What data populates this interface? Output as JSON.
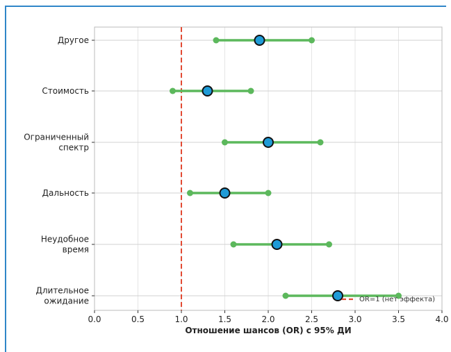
{
  "chart_data": {
    "type": "forest",
    "xlabel": "Отношение шансов (OR) с 95% ДИ",
    "xlim": [
      0.0,
      4.0
    ],
    "xticks": [
      "0.0",
      "0.5",
      "1.0",
      "1.5",
      "2.0",
      "2.5",
      "3.0",
      "3.5",
      "4.0"
    ],
    "grid": true,
    "reference_line": {
      "x": 1.0,
      "label": "OR=1 (нет эффекта)",
      "color": "#e24a33",
      "style": "dashed"
    },
    "legend_position": "bottom-right",
    "categories": [
      {
        "lines": [
          "Другое"
        ],
        "or": 1.9,
        "lo": 1.4,
        "hi": 2.5
      },
      {
        "lines": [
          "Стоимость"
        ],
        "or": 1.3,
        "lo": 0.9,
        "hi": 1.8
      },
      {
        "lines": [
          "Ограниченный",
          "спектр"
        ],
        "or": 2.0,
        "lo": 1.5,
        "hi": 2.6
      },
      {
        "lines": [
          "Дальность"
        ],
        "or": 1.5,
        "lo": 1.1,
        "hi": 2.0
      },
      {
        "lines": [
          "Неудобное",
          "время"
        ],
        "or": 2.1,
        "lo": 1.6,
        "hi": 2.7
      },
      {
        "lines": [
          "Длительное",
          "ожидание"
        ],
        "or": 2.8,
        "lo": 2.2,
        "hi": 3.5
      }
    ],
    "colors": {
      "ci": "#5cb85c",
      "point": "#1f9bd7",
      "point_edge": "#111111",
      "grid": "#e5e5e5",
      "axis": "#bbbbbb"
    }
  }
}
